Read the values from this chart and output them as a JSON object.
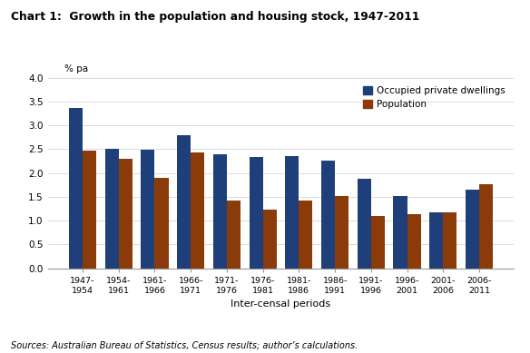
{
  "title": "Chart 1:  Growth in the population and housing stock, 1947-2011",
  "ylabel": "% pa",
  "xlabel": "Inter-censal periods",
  "footnote": "Sources: Australian Bureau of Statistics, Census results; author’s calculations.",
  "categories": [
    "1947-\n1954",
    "1954-\n1961",
    "1961-\n1966",
    "1966-\n1971",
    "1971-\n1976",
    "1976-\n1981",
    "1981-\n1986",
    "1986-\n1991",
    "1991-\n1996",
    "1996-\n2001",
    "2001-\n2006",
    "2006-\n2011"
  ],
  "dwellings": [
    3.37,
    2.5,
    2.49,
    2.8,
    2.39,
    2.33,
    2.35,
    2.25,
    1.88,
    1.52,
    1.18,
    1.65
  ],
  "population": [
    2.46,
    2.3,
    1.9,
    2.44,
    1.43,
    1.23,
    1.43,
    1.52,
    1.09,
    1.13,
    1.18,
    1.76
  ],
  "dwellings_color": "#1F3F7A",
  "population_color": "#8B3A0A",
  "ylim": [
    0.0,
    4.0
  ],
  "yticks": [
    0.0,
    0.5,
    1.0,
    1.5,
    2.0,
    2.5,
    3.0,
    3.5,
    4.0
  ],
  "legend_labels": [
    "Occupied private dwellings",
    "Population"
  ],
  "bar_width": 0.38
}
